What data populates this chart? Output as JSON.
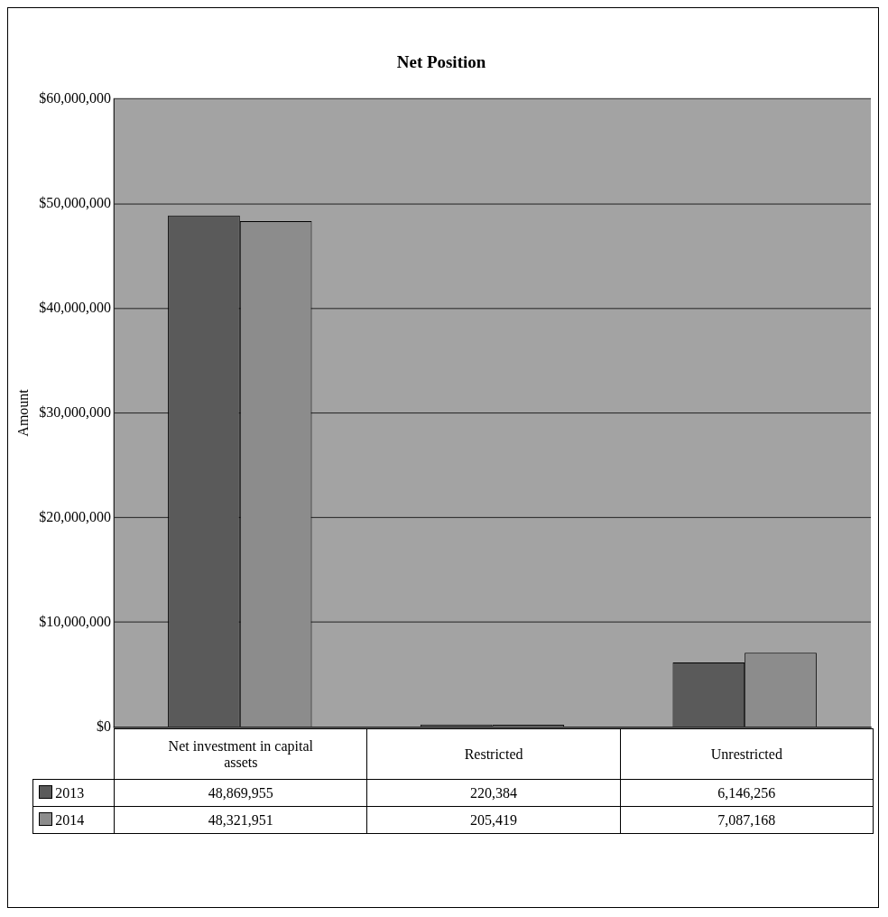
{
  "chart_data": {
    "type": "bar",
    "title": "Net Position",
    "ylabel": "Amount",
    "categories": [
      "Net investment in capital assets",
      "Restricted",
      "Unrestricted"
    ],
    "series": [
      {
        "name": "2013",
        "color": "#5a5a5a",
        "values": [
          48869955,
          220384,
          6146256
        ],
        "value_labels": [
          "48,869,955",
          "220,384",
          "6,146,256"
        ]
      },
      {
        "name": "2014",
        "color": "#8c8c8c",
        "values": [
          48321951,
          205419,
          7087168
        ],
        "value_labels": [
          "48,321,951",
          "205,419",
          "7,087,168"
        ]
      }
    ],
    "ylim": [
      0,
      60000000
    ],
    "yticks": [
      {
        "value": 0,
        "label": "$0"
      },
      {
        "value": 10000000,
        "label": "$10,000,000"
      },
      {
        "value": 20000000,
        "label": "$20,000,000"
      },
      {
        "value": 30000000,
        "label": "$30,000,000"
      },
      {
        "value": 40000000,
        "label": "$40,000,000"
      },
      {
        "value": 50000000,
        "label": "$50,000,000"
      },
      {
        "value": 60000000,
        "label": "$60,000,000"
      }
    ],
    "grid": "y",
    "legend": "bottom"
  }
}
